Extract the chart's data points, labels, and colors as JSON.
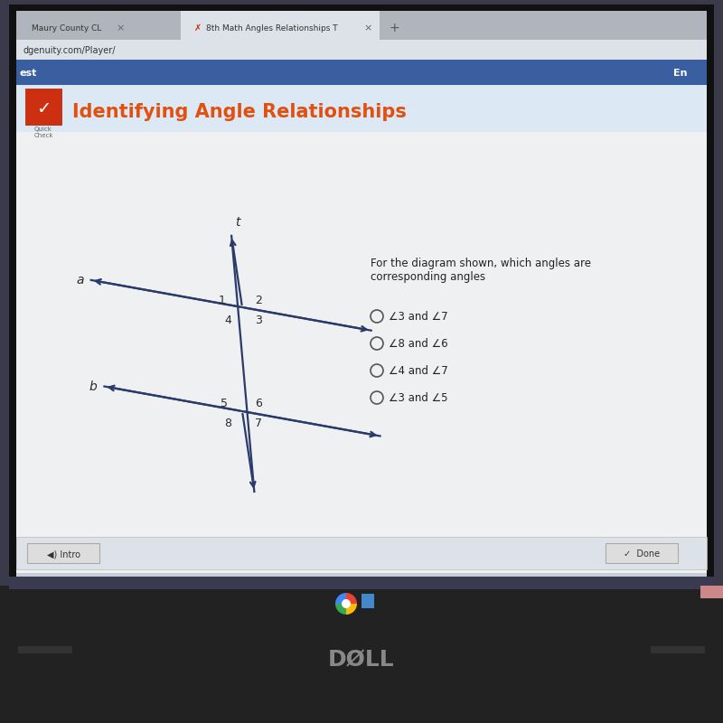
{
  "title": "Identifying Angle Relationships",
  "title_color": "#e05010",
  "title_fontsize": 15,
  "question_text": "For the diagram shown, which angles are\ncorresponding angles",
  "options": [
    "∠3 and ∠7",
    "∠8 and ∠6",
    "∠4 and ∠7",
    "∠3 and ∠5"
  ],
  "screen_bg": "#3a3a4a",
  "laptop_body": "#1a1a1a",
  "browser_bg": "#c8ccd4",
  "tab_bar_bg": "#b0b4bc",
  "active_tab_bg": "#dde2e8",
  "url_bar_bg": "#dde2e8",
  "blue_header_bg": "#3a5fa0",
  "content_bg": "#eef0f2",
  "title_area_bg": "#dde8f5",
  "bottom_bar_bg": "#dde2e8",
  "line_color": "#2a3a6a",
  "label_color": "#2a2a2a",
  "check_icon_bg": "#cc3010"
}
